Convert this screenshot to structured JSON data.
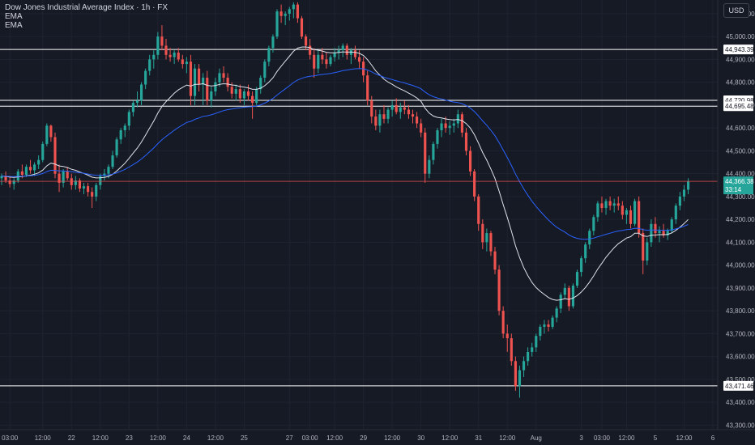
{
  "header": {
    "title": "Dow Jones Industrial Average Index · 1h · FX",
    "indicators": [
      "EMA",
      "EMA"
    ],
    "currency": "USD"
  },
  "colors": {
    "background": "#161a25",
    "grid": "#1f2330",
    "up": "#26a69a",
    "down": "#ef5350",
    "ema_fast": "#e0e3eb",
    "ema_slow": "#2962ff",
    "level": "#ffffff",
    "price_line": "#ef5350"
  },
  "chart_data": {
    "type": "candlestick",
    "ylim": [
      43280,
      45160
    ],
    "y_ticks": [
      43300,
      43400,
      43500,
      43600,
      43700,
      43800,
      43900,
      44000,
      44100,
      44200,
      44300,
      44400,
      44500,
      44600,
      44700,
      44800,
      44900,
      45000,
      45100
    ],
    "y_tick_labels": [
      "43,300.00",
      "43,400.00",
      "43,500.00",
      "43,600.00",
      "43,700.00",
      "43,800.00",
      "43,900.00",
      "44,000.00",
      "44,100.00",
      "44,200.00",
      "44,300.00",
      "44,400.00",
      "44,500.00",
      "44,600.00",
      "44,700.00",
      "44,800.00",
      "44,900.00",
      "45,000.00",
      "45,100.00"
    ],
    "x_range": [
      0,
      173
    ],
    "x_ticks": [
      {
        "x": 2,
        "label": "03:00"
      },
      {
        "x": 10,
        "label": "12:00"
      },
      {
        "x": 17,
        "label": "22"
      },
      {
        "x": 24,
        "label": "12:00"
      },
      {
        "x": 31,
        "label": "23"
      },
      {
        "x": 38,
        "label": "12:00"
      },
      {
        "x": 45,
        "label": "24"
      },
      {
        "x": 52,
        "label": "12:00"
      },
      {
        "x": 59,
        "label": "25"
      },
      {
        "x": 70,
        "label": "27"
      },
      {
        "x": 75,
        "label": "03:00"
      },
      {
        "x": 81,
        "label": "12:00"
      },
      {
        "x": 88,
        "label": "29"
      },
      {
        "x": 95,
        "label": "12:00"
      },
      {
        "x": 102,
        "label": "30"
      },
      {
        "x": 109,
        "label": "12:00"
      },
      {
        "x": 116,
        "label": "31"
      },
      {
        "x": 123,
        "label": "12:00"
      },
      {
        "x": 130,
        "label": "Aug"
      },
      {
        "x": 141,
        "label": "3"
      },
      {
        "x": 146,
        "label": "03:00"
      },
      {
        "x": 152,
        "label": "12:00"
      },
      {
        "x": 159,
        "label": "5"
      },
      {
        "x": 166,
        "label": "12:00"
      },
      {
        "x": 173,
        "label": "6"
      }
    ],
    "levels": [
      {
        "value": 44943.39,
        "label": "44,943.39"
      },
      {
        "value": 44720.98,
        "label": "44,720.98"
      },
      {
        "value": 44695.48,
        "label": "44,695.48"
      },
      {
        "value": 43471.46,
        "label": "43,471.46"
      }
    ],
    "last_price": {
      "value": 44366.38,
      "label": "44,366.38",
      "countdown": "33:14"
    },
    "series": [
      {
        "name": "EMA",
        "type": "line",
        "period": 20
      },
      {
        "name": "EMA",
        "type": "line",
        "period": 50
      }
    ],
    "ohlc": [
      [
        44380,
        44400,
        44350,
        44390
      ],
      [
        44390,
        44410,
        44360,
        44370
      ],
      [
        44370,
        44390,
        44340,
        44355
      ],
      [
        44355,
        44380,
        44330,
        44370
      ],
      [
        44370,
        44420,
        44360,
        44410
      ],
      [
        44410,
        44440,
        44380,
        44395
      ],
      [
        44395,
        44440,
        44385,
        44430
      ],
      [
        44430,
        44460,
        44400,
        44415
      ],
      [
        44415,
        44450,
        44390,
        44440
      ],
      [
        44440,
        44480,
        44420,
        44460
      ],
      [
        44460,
        44540,
        44450,
        44530
      ],
      [
        44530,
        44620,
        44520,
        44610
      ],
      [
        44610,
        44615,
        44540,
        44560
      ],
      [
        44560,
        44580,
        44380,
        44400
      ],
      [
        44400,
        44440,
        44320,
        44360
      ],
      [
        44360,
        44420,
        44340,
        44410
      ],
      [
        44410,
        44430,
        44370,
        44380
      ],
      [
        44380,
        44400,
        44330,
        44350
      ],
      [
        44350,
        44390,
        44330,
        44370
      ],
      [
        44370,
        44380,
        44320,
        44335
      ],
      [
        44335,
        44360,
        44310,
        44345
      ],
      [
        44345,
        44360,
        44300,
        44320
      ],
      [
        44320,
        44340,
        44250,
        44300
      ],
      [
        44300,
        44360,
        44280,
        44350
      ],
      [
        44350,
        44400,
        44330,
        44390
      ],
      [
        44390,
        44420,
        44370,
        44400
      ],
      [
        44400,
        44440,
        44380,
        44430
      ],
      [
        44430,
        44500,
        44420,
        44480
      ],
      [
        44480,
        44560,
        44470,
        44550
      ],
      [
        44550,
        44600,
        44530,
        44590
      ],
      [
        44590,
        44620,
        44560,
        44610
      ],
      [
        44610,
        44680,
        44590,
        44670
      ],
      [
        44670,
        44720,
        44650,
        44710
      ],
      [
        44710,
        44760,
        44690,
        44720
      ],
      [
        44720,
        44800,
        44700,
        44790
      ],
      [
        44790,
        44860,
        44770,
        44850
      ],
      [
        44850,
        44920,
        44830,
        44900
      ],
      [
        44900,
        44940,
        44860,
        44920
      ],
      [
        44920,
        45020,
        44900,
        45000
      ],
      [
        45000,
        45050,
        44940,
        44960
      ],
      [
        44960,
        44990,
        44900,
        44920
      ],
      [
        44920,
        44950,
        44890,
        44910
      ],
      [
        44910,
        44940,
        44880,
        44930
      ],
      [
        44930,
        44950,
        44890,
        44900
      ],
      [
        44900,
        44920,
        44860,
        44880
      ],
      [
        44880,
        44910,
        44840,
        44890
      ],
      [
        44890,
        44920,
        44700,
        44740
      ],
      [
        44740,
        44880,
        44700,
        44860
      ],
      [
        44860,
        44880,
        44760,
        44790
      ],
      [
        44790,
        44840,
        44700,
        44820
      ],
      [
        44820,
        44850,
        44700,
        44720
      ],
      [
        44720,
        44780,
        44690,
        44760
      ],
      [
        44760,
        44820,
        44740,
        44800
      ],
      [
        44800,
        44860,
        44780,
        44840
      ],
      [
        44840,
        44870,
        44800,
        44820
      ],
      [
        44820,
        44840,
        44760,
        44780
      ],
      [
        44780,
        44800,
        44730,
        44750
      ],
      [
        44750,
        44790,
        44720,
        44770
      ],
      [
        44770,
        44790,
        44710,
        44730
      ],
      [
        44730,
        44770,
        44700,
        44760
      ],
      [
        44760,
        44790,
        44720,
        44740
      ],
      [
        44740,
        44760,
        44640,
        44710
      ],
      [
        44710,
        44780,
        44700,
        44770
      ],
      [
        44770,
        44830,
        44750,
        44820
      ],
      [
        44820,
        44900,
        44800,
        44890
      ],
      [
        44890,
        44960,
        44870,
        44950
      ],
      [
        44950,
        45010,
        44930,
        45000
      ],
      [
        45000,
        45120,
        44990,
        45110
      ],
      [
        45110,
        45140,
        45060,
        45090
      ],
      [
        45090,
        45110,
        45050,
        45100
      ],
      [
        45100,
        45130,
        45070,
        45120
      ],
      [
        45120,
        45150,
        45080,
        45140
      ],
      [
        45140,
        45150,
        45060,
        45080
      ],
      [
        45080,
        45090,
        44990,
        45000
      ],
      [
        45000,
        45010,
        44940,
        44960
      ],
      [
        44960,
        44990,
        44900,
        44920
      ],
      [
        44920,
        44950,
        44820,
        44860
      ],
      [
        44860,
        44940,
        44840,
        44920
      ],
      [
        44920,
        44950,
        44880,
        44900
      ],
      [
        44900,
        44930,
        44860,
        44880
      ],
      [
        44880,
        44920,
        44870,
        44910
      ],
      [
        44910,
        44950,
        44890,
        44930
      ],
      [
        44930,
        44960,
        44900,
        44940
      ],
      [
        44940,
        44970,
        44910,
        44960
      ],
      [
        44960,
        44970,
        44900,
        44920
      ],
      [
        44920,
        44950,
        44880,
        44940
      ],
      [
        44940,
        44960,
        44900,
        44910
      ],
      [
        44910,
        44940,
        44860,
        44890
      ],
      [
        44890,
        44910,
        44800,
        44830
      ],
      [
        44830,
        44850,
        44700,
        44720
      ],
      [
        44720,
        44740,
        44620,
        44650
      ],
      [
        44650,
        44680,
        44590,
        44610
      ],
      [
        44610,
        44680,
        44580,
        44660
      ],
      [
        44660,
        44700,
        44620,
        44640
      ],
      [
        44640,
        44690,
        44620,
        44680
      ],
      [
        44680,
        44720,
        44650,
        44700
      ],
      [
        44700,
        44730,
        44660,
        44670
      ],
      [
        44670,
        44710,
        44640,
        44690
      ],
      [
        44690,
        44720,
        44660,
        44680
      ],
      [
        44680,
        44700,
        44640,
        44660
      ],
      [
        44660,
        44680,
        44620,
        44650
      ],
      [
        44650,
        44670,
        44600,
        44620
      ],
      [
        44620,
        44640,
        44560,
        44580
      ],
      [
        44580,
        44600,
        44360,
        44400
      ],
      [
        44400,
        44480,
        44380,
        44460
      ],
      [
        44460,
        44540,
        44440,
        44530
      ],
      [
        44530,
        44600,
        44510,
        44590
      ],
      [
        44590,
        44640,
        44560,
        44620
      ],
      [
        44620,
        44650,
        44580,
        44600
      ],
      [
        44600,
        44630,
        44570,
        44610
      ],
      [
        44610,
        44640,
        44580,
        44620
      ],
      [
        44620,
        44680,
        44600,
        44660
      ],
      [
        44660,
        44670,
        44560,
        44580
      ],
      [
        44580,
        44600,
        44480,
        44500
      ],
      [
        44500,
        44520,
        44390,
        44410
      ],
      [
        44410,
        44420,
        44280,
        44300
      ],
      [
        44300,
        44310,
        44150,
        44180
      ],
      [
        44180,
        44200,
        44070,
        44100
      ],
      [
        44100,
        44160,
        44060,
        44140
      ],
      [
        44140,
        44150,
        44040,
        44060
      ],
      [
        44060,
        44080,
        43960,
        43980
      ],
      [
        43980,
        44000,
        43780,
        43800
      ],
      [
        43800,
        43820,
        43680,
        43700
      ],
      [
        43700,
        43740,
        43620,
        43680
      ],
      [
        43680,
        43700,
        43560,
        43580
      ],
      [
        43580,
        43600,
        43450,
        43470
      ],
      [
        43470,
        43560,
        43420,
        43540
      ],
      [
        43540,
        43600,
        43510,
        43580
      ],
      [
        43580,
        43640,
        43560,
        43620
      ],
      [
        43620,
        43660,
        43600,
        43640
      ],
      [
        43640,
        43700,
        43620,
        43690
      ],
      [
        43690,
        43740,
        43670,
        43730
      ],
      [
        43730,
        43760,
        43700,
        43740
      ],
      [
        43740,
        43760,
        43710,
        43730
      ],
      [
        43730,
        43780,
        43720,
        43770
      ],
      [
        43770,
        43820,
        43750,
        43810
      ],
      [
        43810,
        43880,
        43790,
        43870
      ],
      [
        43870,
        43920,
        43850,
        43900
      ],
      [
        43900,
        43910,
        43800,
        43820
      ],
      [
        43820,
        43920,
        43810,
        43910
      ],
      [
        43910,
        43980,
        43900,
        43970
      ],
      [
        43970,
        44040,
        43950,
        44030
      ],
      [
        44030,
        44100,
        44010,
        44090
      ],
      [
        44090,
        44160,
        44070,
        44150
      ],
      [
        44150,
        44220,
        44130,
        44210
      ],
      [
        44210,
        44280,
        44190,
        44270
      ],
      [
        44270,
        44300,
        44230,
        44250
      ],
      [
        44250,
        44290,
        44220,
        44280
      ],
      [
        44280,
        44300,
        44240,
        44260
      ],
      [
        44260,
        44290,
        44230,
        44270
      ],
      [
        44270,
        44300,
        44240,
        44260
      ],
      [
        44260,
        44280,
        44200,
        44220
      ],
      [
        44220,
        44250,
        44180,
        44240
      ],
      [
        44240,
        44260,
        44160,
        44180
      ],
      [
        44180,
        44290,
        44170,
        44280
      ],
      [
        44280,
        44300,
        44120,
        44140
      ],
      [
        44140,
        44160,
        43960,
        44020
      ],
      [
        44020,
        44120,
        44000,
        44100
      ],
      [
        44100,
        44200,
        44080,
        44180
      ],
      [
        44180,
        44210,
        44120,
        44140
      ],
      [
        44140,
        44170,
        44100,
        44150
      ],
      [
        44150,
        44180,
        44120,
        44130
      ],
      [
        44130,
        44160,
        44110,
        44150
      ],
      [
        44150,
        44210,
        44140,
        44200
      ],
      [
        44200,
        44270,
        44180,
        44260
      ],
      [
        44260,
        44320,
        44240,
        44300
      ],
      [
        44300,
        44350,
        44280,
        44330
      ],
      [
        44330,
        44380,
        44310,
        44366.38
      ]
    ]
  }
}
